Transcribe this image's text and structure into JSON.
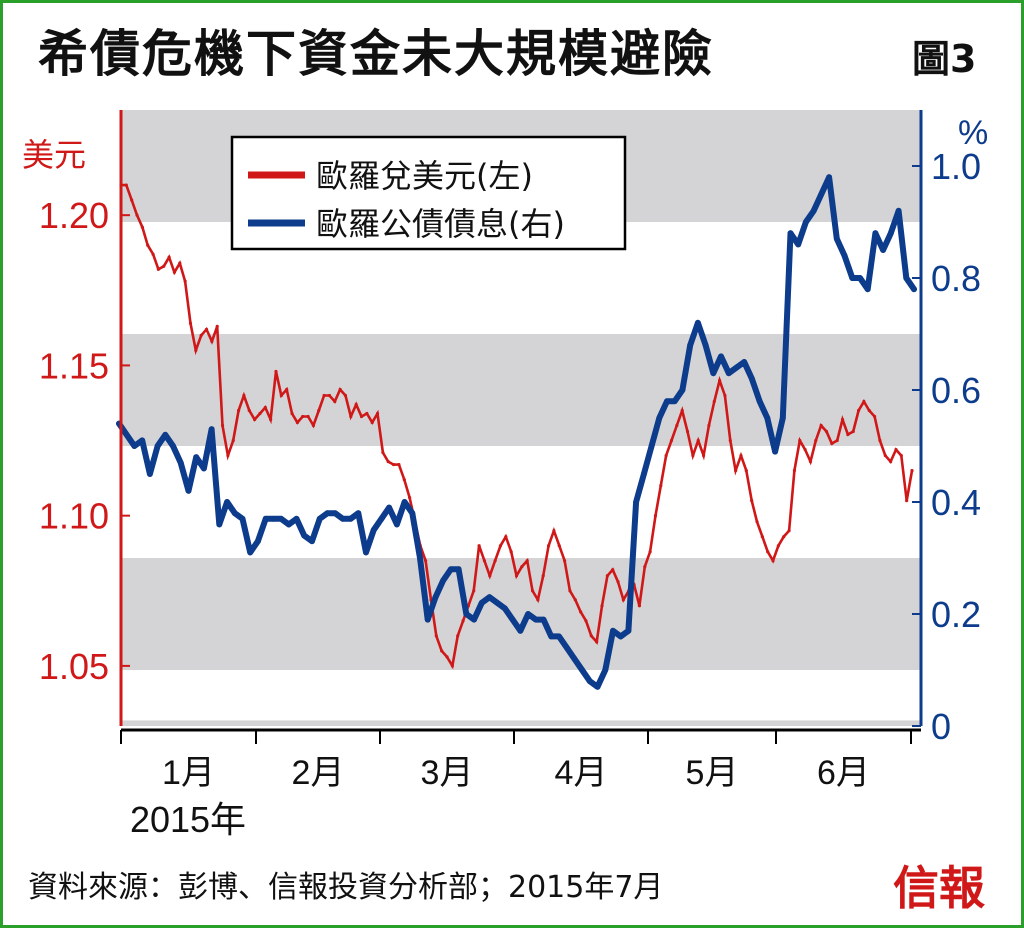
{
  "title": "希債危機下資金未大規模避險",
  "figure_label": "圖3",
  "source": "資料來源：彭博、信報投資分析部；2015年7月",
  "brand": "信報",
  "colors": {
    "left_axis": "#d01818",
    "right_axis": "#0d3c8c",
    "band": "#d4d4d6",
    "frame": "#2aa02a"
  },
  "chart_data": {
    "type": "line",
    "left_axis": {
      "unit": "美元",
      "ticks": [
        "1.05",
        "1.10",
        "1.15",
        "1.20"
      ],
      "range": [
        1.03,
        1.235
      ]
    },
    "right_axis": {
      "unit": "%",
      "ticks": [
        "0",
        "0.2",
        "0.4",
        "0.6",
        "0.8",
        "1.0"
      ],
      "range": [
        0,
        1.1
      ]
    },
    "x_ticks": [
      "1月",
      "2月",
      "3月",
      "4月",
      "5月",
      "6月"
    ],
    "year_label": "2015年",
    "series": [
      {
        "name": "歐羅兌美元(左)",
        "axis": "left",
        "color": "#d01818",
        "values": [
          1.21,
          1.21,
          1.205,
          1.2,
          1.196,
          1.19,
          1.187,
          1.182,
          1.183,
          1.186,
          1.181,
          1.184,
          1.178,
          1.164,
          1.155,
          1.16,
          1.162,
          1.158,
          1.163,
          1.13,
          1.12,
          1.125,
          1.135,
          1.14,
          1.135,
          1.132,
          1.134,
          1.136,
          1.132,
          1.148,
          1.14,
          1.142,
          1.134,
          1.131,
          1.133,
          1.133,
          1.13,
          1.135,
          1.14,
          1.14,
          1.138,
          1.142,
          1.14,
          1.133,
          1.137,
          1.133,
          1.134,
          1.131,
          1.134,
          1.121,
          1.118,
          1.117,
          1.117,
          1.112,
          1.106,
          1.098,
          1.09,
          1.085,
          1.072,
          1.06,
          1.055,
          1.053,
          1.05,
          1.06,
          1.065,
          1.07,
          1.075,
          1.09,
          1.085,
          1.08,
          1.085,
          1.09,
          1.093,
          1.088,
          1.08,
          1.083,
          1.085,
          1.075,
          1.072,
          1.08,
          1.09,
          1.095,
          1.09,
          1.085,
          1.075,
          1.072,
          1.068,
          1.065,
          1.06,
          1.058,
          1.07,
          1.08,
          1.082,
          1.078,
          1.072,
          1.075,
          1.077,
          1.07,
          1.083,
          1.088,
          1.1,
          1.11,
          1.12,
          1.125,
          1.13,
          1.135,
          1.128,
          1.12,
          1.125,
          1.12,
          1.13,
          1.138,
          1.145,
          1.14,
          1.125,
          1.115,
          1.12,
          1.115,
          1.105,
          1.098,
          1.093,
          1.088,
          1.085,
          1.09,
          1.093,
          1.095,
          1.115,
          1.125,
          1.122,
          1.118,
          1.125,
          1.13,
          1.128,
          1.124,
          1.125,
          1.132,
          1.127,
          1.128,
          1.135,
          1.138,
          1.135,
          1.133,
          1.125,
          1.12,
          1.118,
          1.122,
          1.12,
          1.105,
          1.115
        ]
      },
      {
        "name": "歐羅公債債息(右)",
        "axis": "right",
        "color": "#0d3c8c",
        "values": [
          0.54,
          0.52,
          0.5,
          0.51,
          0.45,
          0.5,
          0.52,
          0.5,
          0.47,
          0.42,
          0.48,
          0.46,
          0.53,
          0.36,
          0.4,
          0.38,
          0.37,
          0.31,
          0.33,
          0.37,
          0.37,
          0.37,
          0.36,
          0.37,
          0.34,
          0.33,
          0.37,
          0.38,
          0.38,
          0.37,
          0.37,
          0.38,
          0.31,
          0.35,
          0.37,
          0.39,
          0.36,
          0.4,
          0.38,
          0.3,
          0.19,
          0.23,
          0.26,
          0.28,
          0.28,
          0.2,
          0.19,
          0.22,
          0.23,
          0.22,
          0.21,
          0.19,
          0.17,
          0.2,
          0.19,
          0.19,
          0.16,
          0.16,
          0.14,
          0.12,
          0.1,
          0.08,
          0.07,
          0.1,
          0.17,
          0.16,
          0.17,
          0.4,
          0.45,
          0.5,
          0.55,
          0.58,
          0.58,
          0.6,
          0.68,
          0.72,
          0.68,
          0.63,
          0.66,
          0.63,
          0.64,
          0.65,
          0.62,
          0.58,
          0.55,
          0.49,
          0.55,
          0.88,
          0.86,
          0.9,
          0.92,
          0.95,
          0.98,
          0.87,
          0.84,
          0.8,
          0.8,
          0.78,
          0.88,
          0.85,
          0.88,
          0.92,
          0.8,
          0.78
        ]
      }
    ]
  }
}
